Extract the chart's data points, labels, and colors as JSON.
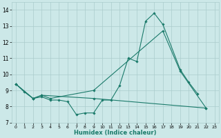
{
  "xlabel": "Humidex (Indice chaleur)",
  "xlim": [
    -0.5,
    23.5
  ],
  "ylim": [
    7,
    14.5
  ],
  "yticks": [
    7,
    8,
    9,
    10,
    11,
    12,
    13,
    14
  ],
  "xticks": [
    0,
    1,
    2,
    3,
    4,
    5,
    6,
    7,
    8,
    9,
    10,
    11,
    12,
    13,
    14,
    15,
    16,
    17,
    18,
    19,
    20,
    21,
    22,
    23
  ],
  "background_color": "#cce8e8",
  "grid_color": "#aacccc",
  "line_color": "#1a7a6a",
  "s1_x": [
    0,
    1,
    2,
    3,
    4,
    5,
    6,
    7,
    8,
    9,
    10,
    11,
    12,
    13,
    14,
    15,
    16,
    17,
    19,
    20,
    21
  ],
  "s1_y": [
    9.4,
    8.9,
    8.5,
    8.6,
    8.4,
    8.4,
    8.3,
    7.5,
    7.6,
    7.6,
    8.4,
    8.4,
    9.3,
    11.0,
    10.8,
    13.3,
    13.8,
    13.1,
    10.3,
    9.5,
    8.8
  ],
  "s2_x": [
    0,
    2,
    3,
    4,
    9,
    17,
    19,
    22
  ],
  "s2_y": [
    9.4,
    8.5,
    8.7,
    8.5,
    9.0,
    12.7,
    10.2,
    7.9
  ],
  "s3_x": [
    0,
    2,
    3,
    9,
    22
  ],
  "s3_y": [
    9.4,
    8.5,
    8.7,
    8.5,
    7.9
  ]
}
